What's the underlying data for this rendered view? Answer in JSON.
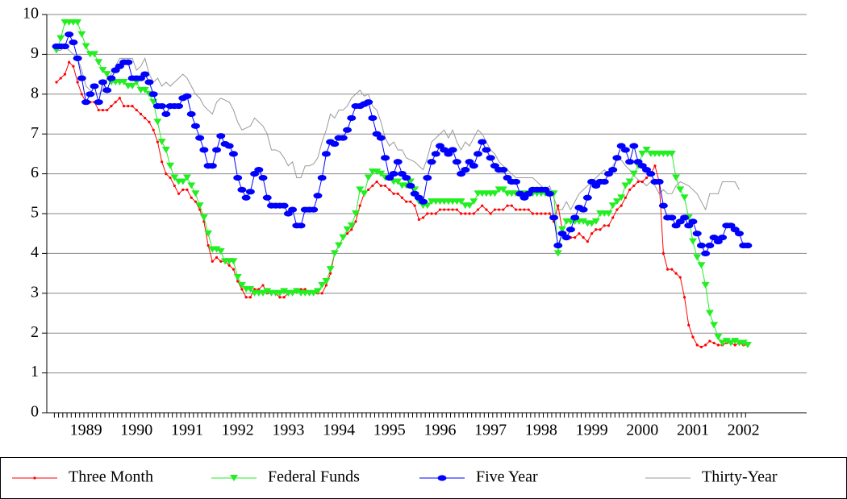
{
  "chart_data": {
    "type": "line",
    "categories": [
      null,
      null,
      null,
      null,
      null,
      null,
      null,
      "1989",
      null,
      null,
      null,
      null,
      null,
      null,
      null,
      null,
      null,
      null,
      null,
      "1990",
      null,
      null,
      null,
      null,
      null,
      null,
      null,
      null,
      null,
      null,
      null,
      "1991",
      null,
      null,
      null,
      null,
      null,
      null,
      null,
      null,
      null,
      null,
      null,
      "1992",
      null,
      null,
      null,
      null,
      null,
      null,
      null,
      null,
      null,
      null,
      null,
      "1993",
      null,
      null,
      null,
      null,
      null,
      null,
      null,
      null,
      null,
      null,
      null,
      "1994",
      null,
      null,
      null,
      null,
      null,
      null,
      null,
      null,
      null,
      null,
      null,
      "1995",
      null,
      null,
      null,
      null,
      null,
      null,
      null,
      null,
      null,
      null,
      null,
      "1996",
      null,
      null,
      null,
      null,
      null,
      null,
      null,
      null,
      null,
      null,
      null,
      "1997",
      null,
      null,
      null,
      null,
      null,
      null,
      null,
      null,
      null,
      null,
      null,
      "1998",
      null,
      null,
      null,
      null,
      null,
      null,
      null,
      null,
      null,
      null,
      null,
      "1999",
      null,
      null,
      null,
      null,
      null,
      null,
      null,
      null,
      null,
      null,
      null,
      "2000",
      null,
      null,
      null,
      null,
      null,
      null,
      null,
      null,
      null,
      null,
      null,
      "2001",
      null,
      null,
      null,
      null,
      null,
      null,
      null,
      null,
      null,
      null,
      null,
      "2002",
      null
    ],
    "series": [
      {
        "name": "Three Month",
        "color": "#ff0000",
        "marker": "dot",
        "values": [
          8.3,
          8.4,
          8.5,
          8.8,
          8.7,
          8.3,
          8.0,
          7.8,
          7.8,
          7.8,
          7.6,
          7.6,
          7.6,
          7.7,
          7.8,
          7.9,
          7.7,
          7.7,
          7.7,
          7.6,
          7.5,
          7.4,
          7.3,
          7.1,
          6.8,
          6.3,
          6.0,
          5.9,
          5.7,
          5.5,
          5.6,
          5.6,
          5.4,
          5.3,
          5.1,
          4.8,
          4.2,
          3.8,
          3.9,
          3.8,
          3.8,
          3.7,
          3.6,
          3.3,
          3.1,
          2.9,
          2.9,
          3.1,
          3.1,
          3.2,
          3.0,
          3.0,
          3.0,
          2.9,
          2.9,
          3.0,
          3.0,
          3.1,
          3.1,
          3.1,
          3.0,
          3.0,
          3.0,
          3.0,
          3.2,
          3.5,
          4.0,
          4.2,
          4.4,
          4.5,
          4.6,
          4.8,
          5.2,
          5.5,
          5.6,
          5.7,
          5.8,
          5.7,
          5.7,
          5.6,
          5.5,
          5.5,
          5.4,
          5.3,
          5.3,
          5.2,
          4.85,
          4.9,
          5.0,
          5.0,
          5.0,
          5.1,
          5.1,
          5.1,
          5.1,
          5.1,
          5.0,
          5.0,
          5.0,
          5.0,
          5.1,
          5.2,
          5.1,
          5.0,
          5.1,
          5.1,
          5.1,
          5.2,
          5.2,
          5.1,
          5.1,
          5.1,
          5.1,
          5.0,
          5.0,
          5.0,
          5.0,
          5.0,
          4.8,
          5.2,
          4.6,
          4.4,
          4.4,
          4.4,
          4.5,
          4.4,
          4.3,
          4.5,
          4.6,
          4.6,
          4.7,
          4.7,
          4.9,
          5.1,
          5.2,
          5.4,
          5.6,
          5.7,
          5.8,
          5.8,
          5.9,
          6.0,
          6.2,
          5.8,
          4.0,
          3.6,
          3.6,
          3.5,
          3.4,
          2.9,
          2.2,
          1.9,
          1.7,
          1.65,
          1.7,
          1.8,
          1.75,
          1.7,
          1.7,
          1.75,
          1.75,
          1.7,
          1.75,
          1.7,
          1.7
        ]
      },
      {
        "name": "Federal Funds",
        "color": "#22ee22",
        "marker": "triangle",
        "values": [
          9.1,
          9.4,
          9.8,
          9.8,
          9.8,
          9.8,
          9.5,
          9.2,
          9.0,
          9.0,
          8.8,
          8.6,
          8.5,
          8.3,
          8.3,
          8.3,
          8.3,
          8.2,
          8.2,
          8.3,
          8.1,
          8.1,
          8.0,
          7.8,
          7.3,
          6.8,
          6.6,
          6.2,
          5.9,
          5.8,
          5.8,
          5.9,
          5.7,
          5.5,
          5.2,
          4.9,
          4.5,
          4.1,
          4.1,
          4.05,
          3.8,
          3.8,
          3.8,
          3.4,
          3.2,
          3.1,
          3.1,
          3.0,
          3.0,
          3.0,
          3.05,
          3.0,
          3.0,
          3.0,
          3.05,
          3.0,
          3.0,
          3.05,
          3.0,
          3.0,
          3.0,
          3.0,
          3.05,
          3.2,
          3.3,
          3.6,
          4.0,
          4.2,
          4.4,
          4.6,
          4.7,
          5.0,
          5.6,
          5.5,
          5.9,
          6.05,
          6.05,
          6.0,
          5.9,
          5.9,
          5.8,
          5.8,
          5.7,
          5.7,
          5.8,
          5.6,
          5.3,
          5.2,
          5.2,
          5.3,
          5.3,
          5.3,
          5.3,
          5.3,
          5.3,
          5.3,
          5.3,
          5.2,
          5.2,
          5.3,
          5.5,
          5.5,
          5.5,
          5.5,
          5.5,
          5.6,
          5.6,
          5.5,
          5.5,
          5.5,
          5.5,
          5.5,
          5.5,
          5.5,
          5.5,
          5.5,
          5.5,
          5.5,
          5.5,
          4.0,
          4.6,
          4.8,
          4.8,
          4.8,
          4.8,
          4.8,
          4.75,
          4.75,
          4.8,
          5.0,
          5.0,
          5.0,
          5.2,
          5.3,
          5.4,
          5.7,
          5.8,
          6.0,
          6.2,
          6.5,
          6.6,
          6.5,
          6.5,
          6.5,
          6.5,
          6.5,
          6.5,
          5.9,
          5.6,
          5.4,
          4.9,
          4.3,
          3.9,
          3.7,
          3.2,
          2.5,
          2.2,
          1.9,
          1.75,
          1.8,
          1.75,
          1.8,
          1.75,
          1.75,
          1.7
        ]
      },
      {
        "name": "Five Year",
        "color": "#0000ff",
        "marker": "ellipse",
        "values": [
          9.2,
          9.2,
          9.2,
          9.5,
          9.3,
          8.9,
          8.4,
          7.8,
          8.0,
          8.2,
          7.8,
          8.3,
          8.1,
          8.4,
          8.6,
          8.7,
          8.8,
          8.8,
          8.4,
          8.4,
          8.4,
          8.5,
          8.3,
          8.0,
          7.7,
          7.7,
          7.5,
          7.7,
          7.7,
          7.7,
          7.9,
          7.95,
          7.5,
          7.2,
          6.9,
          6.6,
          6.2,
          6.2,
          6.6,
          6.95,
          6.75,
          6.7,
          6.5,
          5.9,
          5.6,
          5.4,
          5.55,
          6.0,
          6.1,
          5.9,
          5.4,
          5.2,
          5.2,
          5.2,
          5.2,
          5.0,
          5.1,
          4.7,
          4.7,
          5.1,
          5.1,
          5.1,
          5.45,
          5.9,
          6.5,
          6.8,
          6.75,
          6.9,
          6.9,
          7.1,
          7.4,
          7.7,
          7.7,
          7.75,
          7.8,
          7.4,
          7.0,
          6.9,
          6.4,
          5.9,
          6.0,
          6.3,
          6.0,
          5.9,
          5.7,
          5.5,
          5.4,
          5.3,
          5.9,
          6.3,
          6.5,
          6.7,
          6.6,
          6.5,
          6.6,
          6.3,
          6.0,
          6.1,
          6.3,
          6.2,
          6.5,
          6.8,
          6.6,
          6.4,
          6.2,
          6.1,
          6.1,
          5.9,
          5.8,
          5.8,
          5.5,
          5.4,
          5.5,
          5.6,
          5.6,
          5.6,
          5.6,
          5.5,
          4.9,
          4.2,
          4.5,
          4.4,
          4.6,
          4.9,
          5.15,
          5.1,
          5.4,
          5.8,
          5.7,
          5.8,
          5.8,
          6.0,
          6.1,
          6.4,
          6.7,
          6.6,
          6.3,
          6.7,
          6.3,
          6.2,
          6.1,
          6.0,
          5.8,
          5.8,
          5.2,
          4.9,
          4.9,
          4.7,
          4.8,
          4.9,
          4.7,
          4.8,
          4.5,
          4.2,
          4.0,
          4.2,
          4.4,
          4.3,
          4.4,
          4.7,
          4.7,
          4.6,
          4.5,
          4.2,
          4.2
        ]
      },
      {
        "name": "Thirty-Year",
        "color": "#999999",
        "marker": "none",
        "values": [
          9.1,
          9.1,
          9.2,
          9.1,
          9.0,
          8.9,
          8.6,
          8.2,
          8.1,
          8.0,
          8.0,
          8.1,
          8.4,
          8.5,
          8.7,
          8.9,
          8.9,
          8.9,
          8.9,
          8.6,
          8.7,
          8.9,
          8.5,
          8.3,
          8.4,
          8.2,
          8.3,
          8.2,
          8.3,
          8.4,
          8.5,
          8.4,
          8.2,
          8.0,
          7.9,
          7.7,
          7.6,
          7.5,
          7.8,
          7.9,
          7.85,
          7.8,
          7.6,
          7.3,
          7.1,
          7.15,
          7.2,
          7.4,
          7.3,
          7.2,
          7.0,
          6.6,
          6.6,
          6.55,
          6.4,
          6.2,
          6.3,
          5.9,
          5.9,
          6.2,
          6.2,
          6.25,
          6.4,
          6.8,
          7.1,
          7.5,
          7.4,
          7.6,
          7.6,
          7.7,
          7.9,
          8.0,
          8.1,
          7.95,
          8.0,
          7.7,
          7.6,
          7.3,
          6.9,
          6.7,
          6.8,
          6.6,
          6.6,
          6.4,
          6.35,
          6.3,
          6.2,
          6.1,
          6.4,
          6.8,
          6.9,
          7.0,
          7.1,
          6.9,
          7.1,
          6.8,
          6.6,
          6.8,
          6.7,
          6.9,
          7.1,
          7.0,
          6.8,
          6.6,
          6.5,
          6.3,
          6.2,
          6.1,
          6.0,
          5.9,
          5.9,
          5.9,
          5.9,
          5.9,
          5.8,
          5.7,
          5.6,
          5.7,
          5.4,
          5.1,
          5.1,
          5.3,
          5.1,
          5.3,
          5.5,
          5.6,
          5.7,
          5.8,
          5.9,
          6.0,
          6.1,
          6.0,
          6.2,
          6.35,
          6.35,
          6.2,
          6.1,
          5.95,
          5.85,
          5.8,
          5.7,
          5.8,
          5.7,
          5.5,
          5.6,
          5.5,
          5.5,
          5.7,
          5.8,
          5.75,
          5.7,
          5.6,
          5.5,
          5.3,
          5.1,
          5.5,
          5.5,
          5.5,
          5.8,
          5.8,
          5.8,
          5.8,
          5.6,
          null,
          null
        ]
      }
    ],
    "ylim": [
      0,
      10
    ],
    "yticks": [
      0,
      1,
      2,
      3,
      4,
      5,
      6,
      7,
      8,
      9,
      10
    ],
    "grid": true,
    "legend": "bottom"
  }
}
